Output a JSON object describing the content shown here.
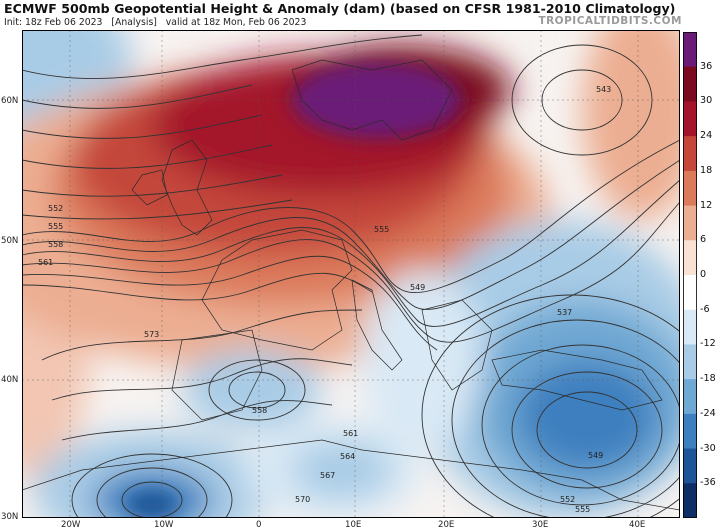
{
  "header": {
    "title": "ECMWF 500mb Geopotential Height & Anomaly (dam) (based on CFSR 1981-2010 Climatology)",
    "init": "Init: 18z Feb 06 2023",
    "analysis": "[Analysis]",
    "valid": "valid at 18z Mon, Feb 06 2023",
    "brand": "TROPICALTIDBITS.COM"
  },
  "lat_labels": [
    {
      "text": "60N"
    },
    {
      "text": "50N"
    },
    {
      "text": "40N"
    },
    {
      "text": "30N"
    }
  ],
  "lon_labels": [
    {
      "text": "20W"
    },
    {
      "text": "10W"
    },
    {
      "text": "0"
    },
    {
      "text": "10E"
    },
    {
      "text": "20E"
    },
    {
      "text": "30E"
    },
    {
      "text": "40E"
    }
  ],
  "contour_labels": [
    "543",
    "552",
    "555",
    "558",
    "561",
    "573",
    "555",
    "549",
    "537",
    "558",
    "561",
    "564",
    "567",
    "570",
    "549",
    "552",
    "555"
  ],
  "colorbar": {
    "ticks": [
      "36",
      "30",
      "24",
      "18",
      "12",
      "6",
      "0",
      "-6",
      "-12",
      "-18",
      "-24",
      "-30",
      "-36"
    ],
    "colors": [
      "#6a1b78",
      "#7a0a1f",
      "#a4152c",
      "#c4473a",
      "#dc7a5c",
      "#ecae92",
      "#f9e1d4",
      "#ffffff",
      "#d9e9f5",
      "#a9cce6",
      "#6fa8d3",
      "#3d7fbf",
      "#1d5596",
      "#0e2e66"
    ]
  },
  "colors": {
    "ridge_max": "#6a1b78",
    "warm": "#c4473a",
    "cool": "#6fa8d3",
    "contour": "#333333"
  }
}
